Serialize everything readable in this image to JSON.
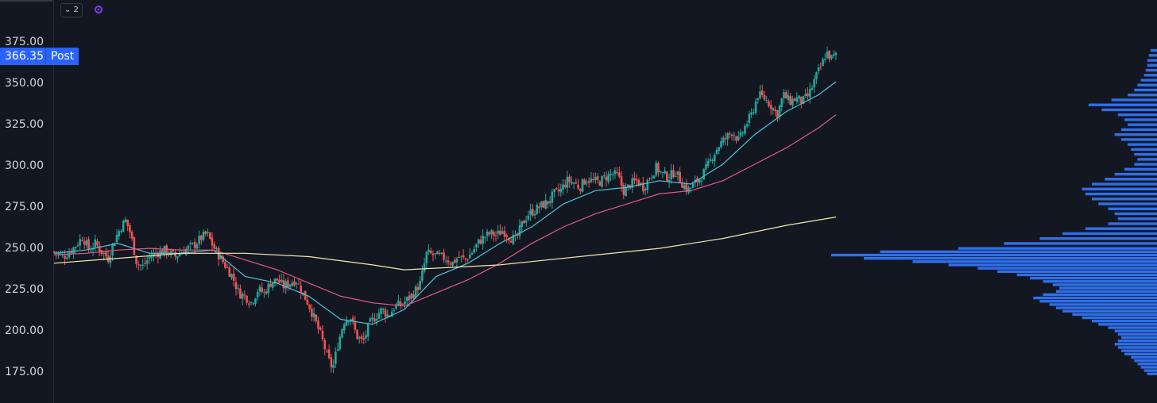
{
  "toolbar": {
    "collapse_badge": "⌄ 2",
    "sync_icon": "sync-icon"
  },
  "price_tag": {
    "value": "366.35",
    "label": "Post",
    "color": "#2962ff"
  },
  "colors": {
    "background": "#131722",
    "up": "#26a69a",
    "down": "#ef5350",
    "ma_fast": "#4ec3d6",
    "ma_mid": "#e05a86",
    "ma_slow": "#f2e8b0",
    "volume_profile": "#2f6fea",
    "axis_text": "#d1d4dc"
  },
  "chart_data": {
    "type": "candlestick",
    "ylim": [
      165,
      385
    ],
    "y_ticks": [
      "375.00",
      "350.00",
      "325.00",
      "300.00",
      "275.00",
      "250.00",
      "225.00",
      "200.00",
      "175.00"
    ],
    "y_tick_values": [
      375,
      350,
      325,
      300,
      275,
      250,
      225,
      200,
      175
    ],
    "last_price": 366.35,
    "close_path": [
      [
        0,
        247
      ],
      [
        6,
        244
      ],
      [
        12,
        249
      ],
      [
        18,
        256
      ],
      [
        22,
        248
      ],
      [
        26,
        252
      ],
      [
        30,
        247
      ],
      [
        34,
        243
      ],
      [
        38,
        254
      ],
      [
        42,
        262
      ],
      [
        45,
        266
      ],
      [
        48,
        258
      ],
      [
        52,
        240
      ],
      [
        56,
        238
      ],
      [
        60,
        244
      ],
      [
        64,
        246
      ],
      [
        70,
        248
      ],
      [
        76,
        244
      ],
      [
        80,
        247
      ],
      [
        84,
        249
      ],
      [
        88,
        251
      ],
      [
        92,
        255
      ],
      [
        96,
        258
      ],
      [
        100,
        250
      ],
      [
        104,
        244
      ],
      [
        108,
        238
      ],
      [
        112,
        232
      ],
      [
        116,
        222
      ],
      [
        120,
        220
      ],
      [
        124,
        216
      ],
      [
        128,
        224
      ],
      [
        132,
        222
      ],
      [
        136,
        228
      ],
      [
        140,
        230
      ],
      [
        144,
        226
      ],
      [
        148,
        228
      ],
      [
        152,
        230
      ],
      [
        156,
        222
      ],
      [
        160,
        215
      ],
      [
        164,
        205
      ],
      [
        168,
        195
      ],
      [
        172,
        182
      ],
      [
        175,
        176
      ],
      [
        178,
        190
      ],
      [
        182,
        205
      ],
      [
        186,
        208
      ],
      [
        190,
        196
      ],
      [
        194,
        192
      ],
      [
        198,
        203
      ],
      [
        202,
        208
      ],
      [
        206,
        212
      ],
      [
        210,
        208
      ],
      [
        214,
        214
      ],
      [
        218,
        215
      ],
      [
        222,
        218
      ],
      [
        226,
        222
      ],
      [
        230,
        228
      ],
      [
        234,
        246
      ],
      [
        238,
        245
      ],
      [
        242,
        244
      ],
      [
        246,
        243
      ],
      [
        250,
        240
      ],
      [
        254,
        244
      ],
      [
        258,
        242
      ],
      [
        262,
        246
      ],
      [
        266,
        252
      ],
      [
        270,
        256
      ],
      [
        274,
        258
      ],
      [
        278,
        257
      ],
      [
        282,
        260
      ],
      [
        286,
        256
      ],
      [
        290,
        254
      ],
      [
        294,
        264
      ],
      [
        298,
        270
      ],
      [
        302,
        272
      ],
      [
        306,
        275
      ],
      [
        310,
        277
      ],
      [
        314,
        282
      ],
      [
        318,
        284
      ],
      [
        322,
        290
      ],
      [
        326,
        289
      ],
      [
        330,
        286
      ],
      [
        334,
        291
      ],
      [
        338,
        290
      ],
      [
        342,
        289
      ],
      [
        346,
        292
      ],
      [
        350,
        294
      ],
      [
        354,
        293
      ],
      [
        358,
        283
      ],
      [
        362,
        288
      ],
      [
        366,
        290
      ],
      [
        370,
        286
      ],
      [
        374,
        292
      ],
      [
        378,
        298
      ],
      [
        382,
        294
      ],
      [
        386,
        292
      ],
      [
        390,
        296
      ],
      [
        394,
        289
      ],
      [
        398,
        284
      ],
      [
        402,
        288
      ],
      [
        406,
        292
      ],
      [
        410,
        298
      ],
      [
        414,
        306
      ],
      [
        418,
        312
      ],
      [
        422,
        316
      ],
      [
        426,
        320
      ],
      [
        430,
        314
      ],
      [
        434,
        323
      ],
      [
        438,
        330
      ],
      [
        442,
        342
      ],
      [
        446,
        340
      ],
      [
        450,
        336
      ],
      [
        454,
        330
      ],
      [
        458,
        342
      ],
      [
        462,
        338
      ],
      [
        466,
        340
      ],
      [
        470,
        338
      ],
      [
        474,
        342
      ],
      [
        478,
        352
      ],
      [
        482,
        360
      ],
      [
        485,
        368
      ],
      [
        488,
        364
      ],
      [
        491,
        366
      ]
    ],
    "moving_averages": [
      {
        "name": "MA fast",
        "color": "#4ec3d6",
        "points": [
          [
            0,
            246
          ],
          [
            20,
            248
          ],
          [
            40,
            252
          ],
          [
            60,
            246
          ],
          [
            80,
            246
          ],
          [
            100,
            248
          ],
          [
            120,
            232
          ],
          [
            140,
            228
          ],
          [
            160,
            220
          ],
          [
            180,
            206
          ],
          [
            200,
            203
          ],
          [
            220,
            212
          ],
          [
            240,
            232
          ],
          [
            260,
            240
          ],
          [
            280,
            252
          ],
          [
            300,
            262
          ],
          [
            320,
            276
          ],
          [
            340,
            284
          ],
          [
            360,
            286
          ],
          [
            380,
            290
          ],
          [
            400,
            288
          ],
          [
            420,
            300
          ],
          [
            440,
            318
          ],
          [
            460,
            332
          ],
          [
            480,
            342
          ],
          [
            491,
            350
          ]
        ]
      },
      {
        "name": "MA mid",
        "color": "#e05a86",
        "points": [
          [
            0,
            245
          ],
          [
            20,
            246
          ],
          [
            40,
            248
          ],
          [
            60,
            249
          ],
          [
            80,
            248
          ],
          [
            100,
            248
          ],
          [
            120,
            242
          ],
          [
            140,
            236
          ],
          [
            160,
            228
          ],
          [
            180,
            220
          ],
          [
            200,
            216
          ],
          [
            220,
            214
          ],
          [
            240,
            222
          ],
          [
            260,
            230
          ],
          [
            280,
            240
          ],
          [
            300,
            252
          ],
          [
            320,
            262
          ],
          [
            340,
            270
          ],
          [
            360,
            276
          ],
          [
            380,
            282
          ],
          [
            400,
            284
          ],
          [
            420,
            290
          ],
          [
            440,
            300
          ],
          [
            460,
            310
          ],
          [
            480,
            322
          ],
          [
            491,
            330
          ]
        ]
      },
      {
        "name": "MA slow",
        "color": "#f2e8b0",
        "points": [
          [
            0,
            240
          ],
          [
            40,
            243
          ],
          [
            80,
            246
          ],
          [
            120,
            246
          ],
          [
            160,
            244
          ],
          [
            200,
            239
          ],
          [
            220,
            236
          ],
          [
            240,
            237
          ],
          [
            260,
            238
          ],
          [
            280,
            239
          ],
          [
            300,
            241
          ],
          [
            340,
            245
          ],
          [
            380,
            249
          ],
          [
            420,
            255
          ],
          [
            460,
            263
          ],
          [
            491,
            268
          ]
        ]
      }
    ],
    "volume_profile": [
      [
        369,
        4
      ],
      [
        366,
        5
      ],
      [
        363,
        6
      ],
      [
        360,
        6
      ],
      [
        357,
        7
      ],
      [
        354,
        8
      ],
      [
        351,
        10
      ],
      [
        348,
        12
      ],
      [
        345,
        14
      ],
      [
        342,
        18
      ],
      [
        339,
        28
      ],
      [
        336,
        42
      ],
      [
        333,
        34
      ],
      [
        330,
        24
      ],
      [
        327,
        20
      ],
      [
        324,
        18
      ],
      [
        321,
        22
      ],
      [
        318,
        26
      ],
      [
        315,
        22
      ],
      [
        312,
        18
      ],
      [
        309,
        16
      ],
      [
        306,
        14
      ],
      [
        303,
        12
      ],
      [
        300,
        14
      ],
      [
        297,
        20
      ],
      [
        294,
        26
      ],
      [
        291,
        32
      ],
      [
        288,
        40
      ],
      [
        285,
        46
      ],
      [
        282,
        44
      ],
      [
        279,
        40
      ],
      [
        276,
        36
      ],
      [
        273,
        30
      ],
      [
        270,
        26
      ],
      [
        267,
        24
      ],
      [
        264,
        30
      ],
      [
        261,
        44
      ],
      [
        258,
        58
      ],
      [
        255,
        72
      ],
      [
        252,
        94
      ],
      [
        249,
        122
      ],
      [
        247,
        170
      ],
      [
        245,
        200
      ],
      [
        243,
        180
      ],
      [
        241,
        150
      ],
      [
        239,
        128
      ],
      [
        237,
        110
      ],
      [
        235,
        98
      ],
      [
        233,
        86
      ],
      [
        231,
        78
      ],
      [
        229,
        70
      ],
      [
        227,
        64
      ],
      [
        225,
        60
      ],
      [
        223,
        62
      ],
      [
        221,
        70
      ],
      [
        219,
        76
      ],
      [
        217,
        72
      ],
      [
        215,
        66
      ],
      [
        213,
        62
      ],
      [
        211,
        58
      ],
      [
        209,
        52
      ],
      [
        207,
        46
      ],
      [
        205,
        40
      ],
      [
        203,
        36
      ],
      [
        201,
        30
      ],
      [
        199,
        26
      ],
      [
        197,
        24
      ],
      [
        195,
        22
      ],
      [
        193,
        24
      ],
      [
        191,
        26
      ],
      [
        189,
        24
      ],
      [
        187,
        22
      ],
      [
        185,
        20
      ],
      [
        183,
        16
      ],
      [
        181,
        14
      ],
      [
        179,
        12
      ],
      [
        177,
        10
      ],
      [
        175,
        8
      ],
      [
        173,
        6
      ]
    ]
  }
}
